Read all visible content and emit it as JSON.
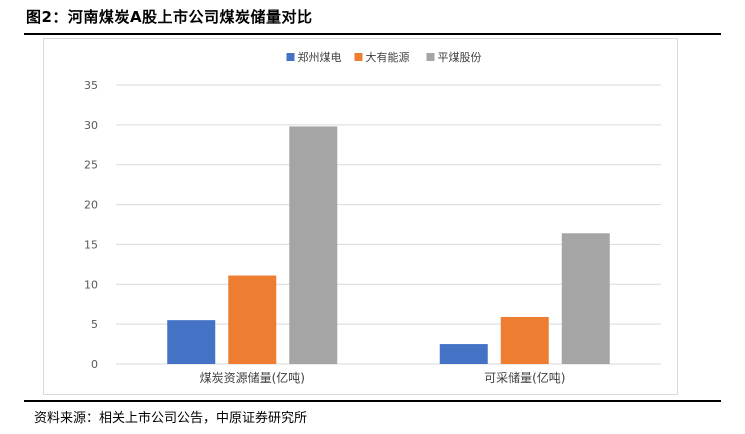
{
  "figure": {
    "title": "图2：河南煤炭A股上市公司煤炭储量对比",
    "source": "资料来源：相关上市公司公告，中原证券研究所"
  },
  "chart_data": {
    "type": "bar",
    "categories": [
      "煤炭资源储量(亿吨)",
      "可采储量(亿吨)"
    ],
    "series": [
      {
        "name": "郑州煤电",
        "color": "#4472c4",
        "values": [
          5.5,
          2.5
        ]
      },
      {
        "name": "大有能源",
        "color": "#ed7d31",
        "values": [
          11.1,
          5.9
        ]
      },
      {
        "name": "平煤股份",
        "color": "#a5a5a5",
        "values": [
          29.8,
          16.4
        ]
      }
    ],
    "ylim": [
      0,
      35
    ],
    "yticks": [
      0,
      5,
      10,
      15,
      20,
      25,
      30,
      35
    ],
    "grid": true,
    "legend_position": "top"
  }
}
